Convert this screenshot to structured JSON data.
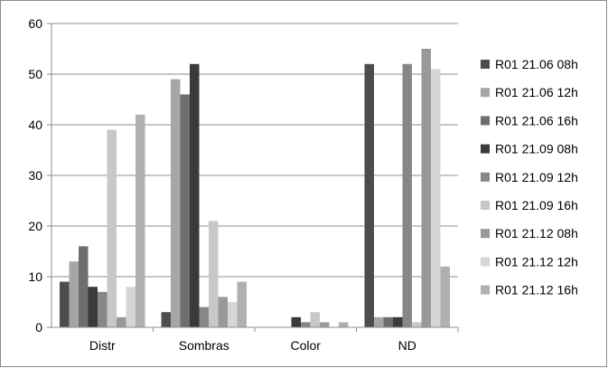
{
  "chart_data": {
    "type": "bar",
    "title": "",
    "xlabel": "",
    "ylabel": "",
    "categories": [
      "Distr",
      "Sombras",
      "Color",
      "ND"
    ],
    "ylim": [
      0,
      60
    ],
    "yticks": [
      0,
      10,
      20,
      30,
      40,
      50,
      60
    ],
    "grid": "horizontal",
    "legend_position": "right",
    "series": [
      {
        "name": "R01 21.06 08h",
        "color": "#4d4d4d",
        "values": [
          9,
          3,
          0,
          52
        ]
      },
      {
        "name": "R01 21.06 12h",
        "color": "#a6a6a6",
        "values": [
          13,
          49,
          0,
          2
        ]
      },
      {
        "name": "R01 21.06 16h",
        "color": "#6e6e6e",
        "values": [
          16,
          46,
          0,
          2
        ]
      },
      {
        "name": "R01 21.09 08h",
        "color": "#3a3a3a",
        "values": [
          8,
          52,
          2,
          2
        ]
      },
      {
        "name": "R01 21.09 12h",
        "color": "#878787",
        "values": [
          7,
          4,
          1,
          52
        ]
      },
      {
        "name": "R01 21.09 16h",
        "color": "#c8c8c8",
        "values": [
          39,
          21,
          3,
          1
        ]
      },
      {
        "name": "R01 21.12 08h",
        "color": "#999999",
        "values": [
          2,
          6,
          1,
          55
        ]
      },
      {
        "name": "R01 21.12 12h",
        "color": "#d6d6d6",
        "values": [
          8,
          5,
          0,
          51
        ]
      },
      {
        "name": "R01 21.12 16h",
        "color": "#b0b0b0",
        "values": [
          42,
          9,
          1,
          12
        ]
      }
    ]
  }
}
